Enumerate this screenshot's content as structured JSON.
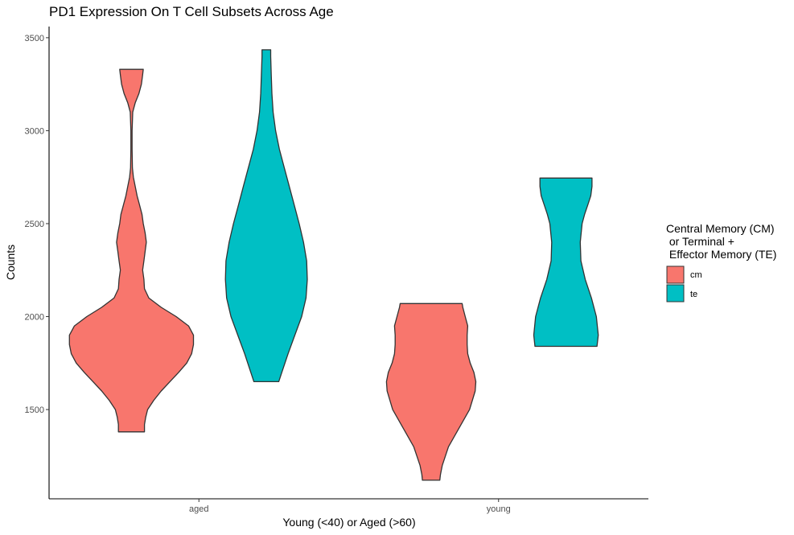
{
  "chart_data": {
    "type": "violin",
    "title": "PD1 Expression On T Cell Subsets Across Age",
    "xlabel": "Young (<40) or Aged (>60)",
    "ylabel": "Counts",
    "categories": [
      "aged",
      "young"
    ],
    "ylim": [
      1020,
      3560
    ],
    "yticks": [
      1500,
      2000,
      2500,
      3000,
      3500
    ],
    "grid": false,
    "legend": {
      "title_lines": [
        "Central Memory (CM)",
        " or Terminal +",
        " Effector Memory (TE)"
      ],
      "position": "right",
      "entries": [
        {
          "label": "cm",
          "color": "#F8766D"
        },
        {
          "label": "te",
          "color": "#00BFC4"
        }
      ]
    },
    "violins": [
      {
        "category": "aged",
        "group": "cm",
        "color": "#F8766D",
        "profile": [
          [
            1380,
            0.21
          ],
          [
            1420,
            0.21
          ],
          [
            1460,
            0.23
          ],
          [
            1500,
            0.26
          ],
          [
            1550,
            0.36
          ],
          [
            1600,
            0.48
          ],
          [
            1650,
            0.62
          ],
          [
            1700,
            0.76
          ],
          [
            1750,
            0.89
          ],
          [
            1800,
            0.97
          ],
          [
            1850,
            1.0
          ],
          [
            1900,
            1.0
          ],
          [
            1950,
            0.92
          ],
          [
            2000,
            0.72
          ],
          [
            2050,
            0.48
          ],
          [
            2100,
            0.28
          ],
          [
            2150,
            0.21
          ],
          [
            2200,
            0.2
          ],
          [
            2250,
            0.18
          ],
          [
            2300,
            0.2
          ],
          [
            2350,
            0.22
          ],
          [
            2400,
            0.24
          ],
          [
            2450,
            0.22
          ],
          [
            2500,
            0.19
          ],
          [
            2550,
            0.17
          ],
          [
            2600,
            0.13
          ],
          [
            2650,
            0.09
          ],
          [
            2700,
            0.06
          ],
          [
            2750,
            0.03
          ],
          [
            2800,
            0.015
          ],
          [
            2900,
            0.01
          ],
          [
            3000,
            0.01
          ],
          [
            3100,
            0.02
          ],
          [
            3150,
            0.06
          ],
          [
            3200,
            0.12
          ],
          [
            3250,
            0.16
          ],
          [
            3300,
            0.18
          ],
          [
            3330,
            0.19
          ]
        ]
      },
      {
        "category": "aged",
        "group": "te",
        "color": "#00BFC4",
        "profile": [
          [
            1650,
            0.2
          ],
          [
            1700,
            0.25
          ],
          [
            1800,
            0.35
          ],
          [
            1900,
            0.46
          ],
          [
            2000,
            0.57
          ],
          [
            2100,
            0.64
          ],
          [
            2200,
            0.66
          ],
          [
            2300,
            0.65
          ],
          [
            2400,
            0.6
          ],
          [
            2500,
            0.53
          ],
          [
            2600,
            0.45
          ],
          [
            2700,
            0.37
          ],
          [
            2800,
            0.29
          ],
          [
            2900,
            0.21
          ],
          [
            3000,
            0.15
          ],
          [
            3100,
            0.11
          ],
          [
            3200,
            0.09
          ],
          [
            3300,
            0.08
          ],
          [
            3400,
            0.07
          ],
          [
            3435,
            0.07
          ]
        ]
      },
      {
        "category": "young",
        "group": "cm",
        "color": "#F8766D",
        "profile": [
          [
            1120,
            0.14
          ],
          [
            1150,
            0.15
          ],
          [
            1200,
            0.18
          ],
          [
            1300,
            0.28
          ],
          [
            1400,
            0.45
          ],
          [
            1500,
            0.62
          ],
          [
            1600,
            0.71
          ],
          [
            1650,
            0.72
          ],
          [
            1700,
            0.69
          ],
          [
            1750,
            0.63
          ],
          [
            1800,
            0.59
          ],
          [
            1850,
            0.58
          ],
          [
            1900,
            0.58
          ],
          [
            1950,
            0.59
          ],
          [
            2000,
            0.55
          ],
          [
            2050,
            0.51
          ],
          [
            2070,
            0.5
          ]
        ]
      },
      {
        "category": "young",
        "group": "te",
        "color": "#00BFC4",
        "profile": [
          [
            1840,
            0.5
          ],
          [
            1900,
            0.52
          ],
          [
            2000,
            0.49
          ],
          [
            2100,
            0.41
          ],
          [
            2200,
            0.31
          ],
          [
            2300,
            0.24
          ],
          [
            2400,
            0.23
          ],
          [
            2500,
            0.26
          ],
          [
            2550,
            0.3
          ],
          [
            2600,
            0.35
          ],
          [
            2650,
            0.4
          ],
          [
            2700,
            0.42
          ],
          [
            2745,
            0.42
          ]
        ]
      }
    ]
  }
}
